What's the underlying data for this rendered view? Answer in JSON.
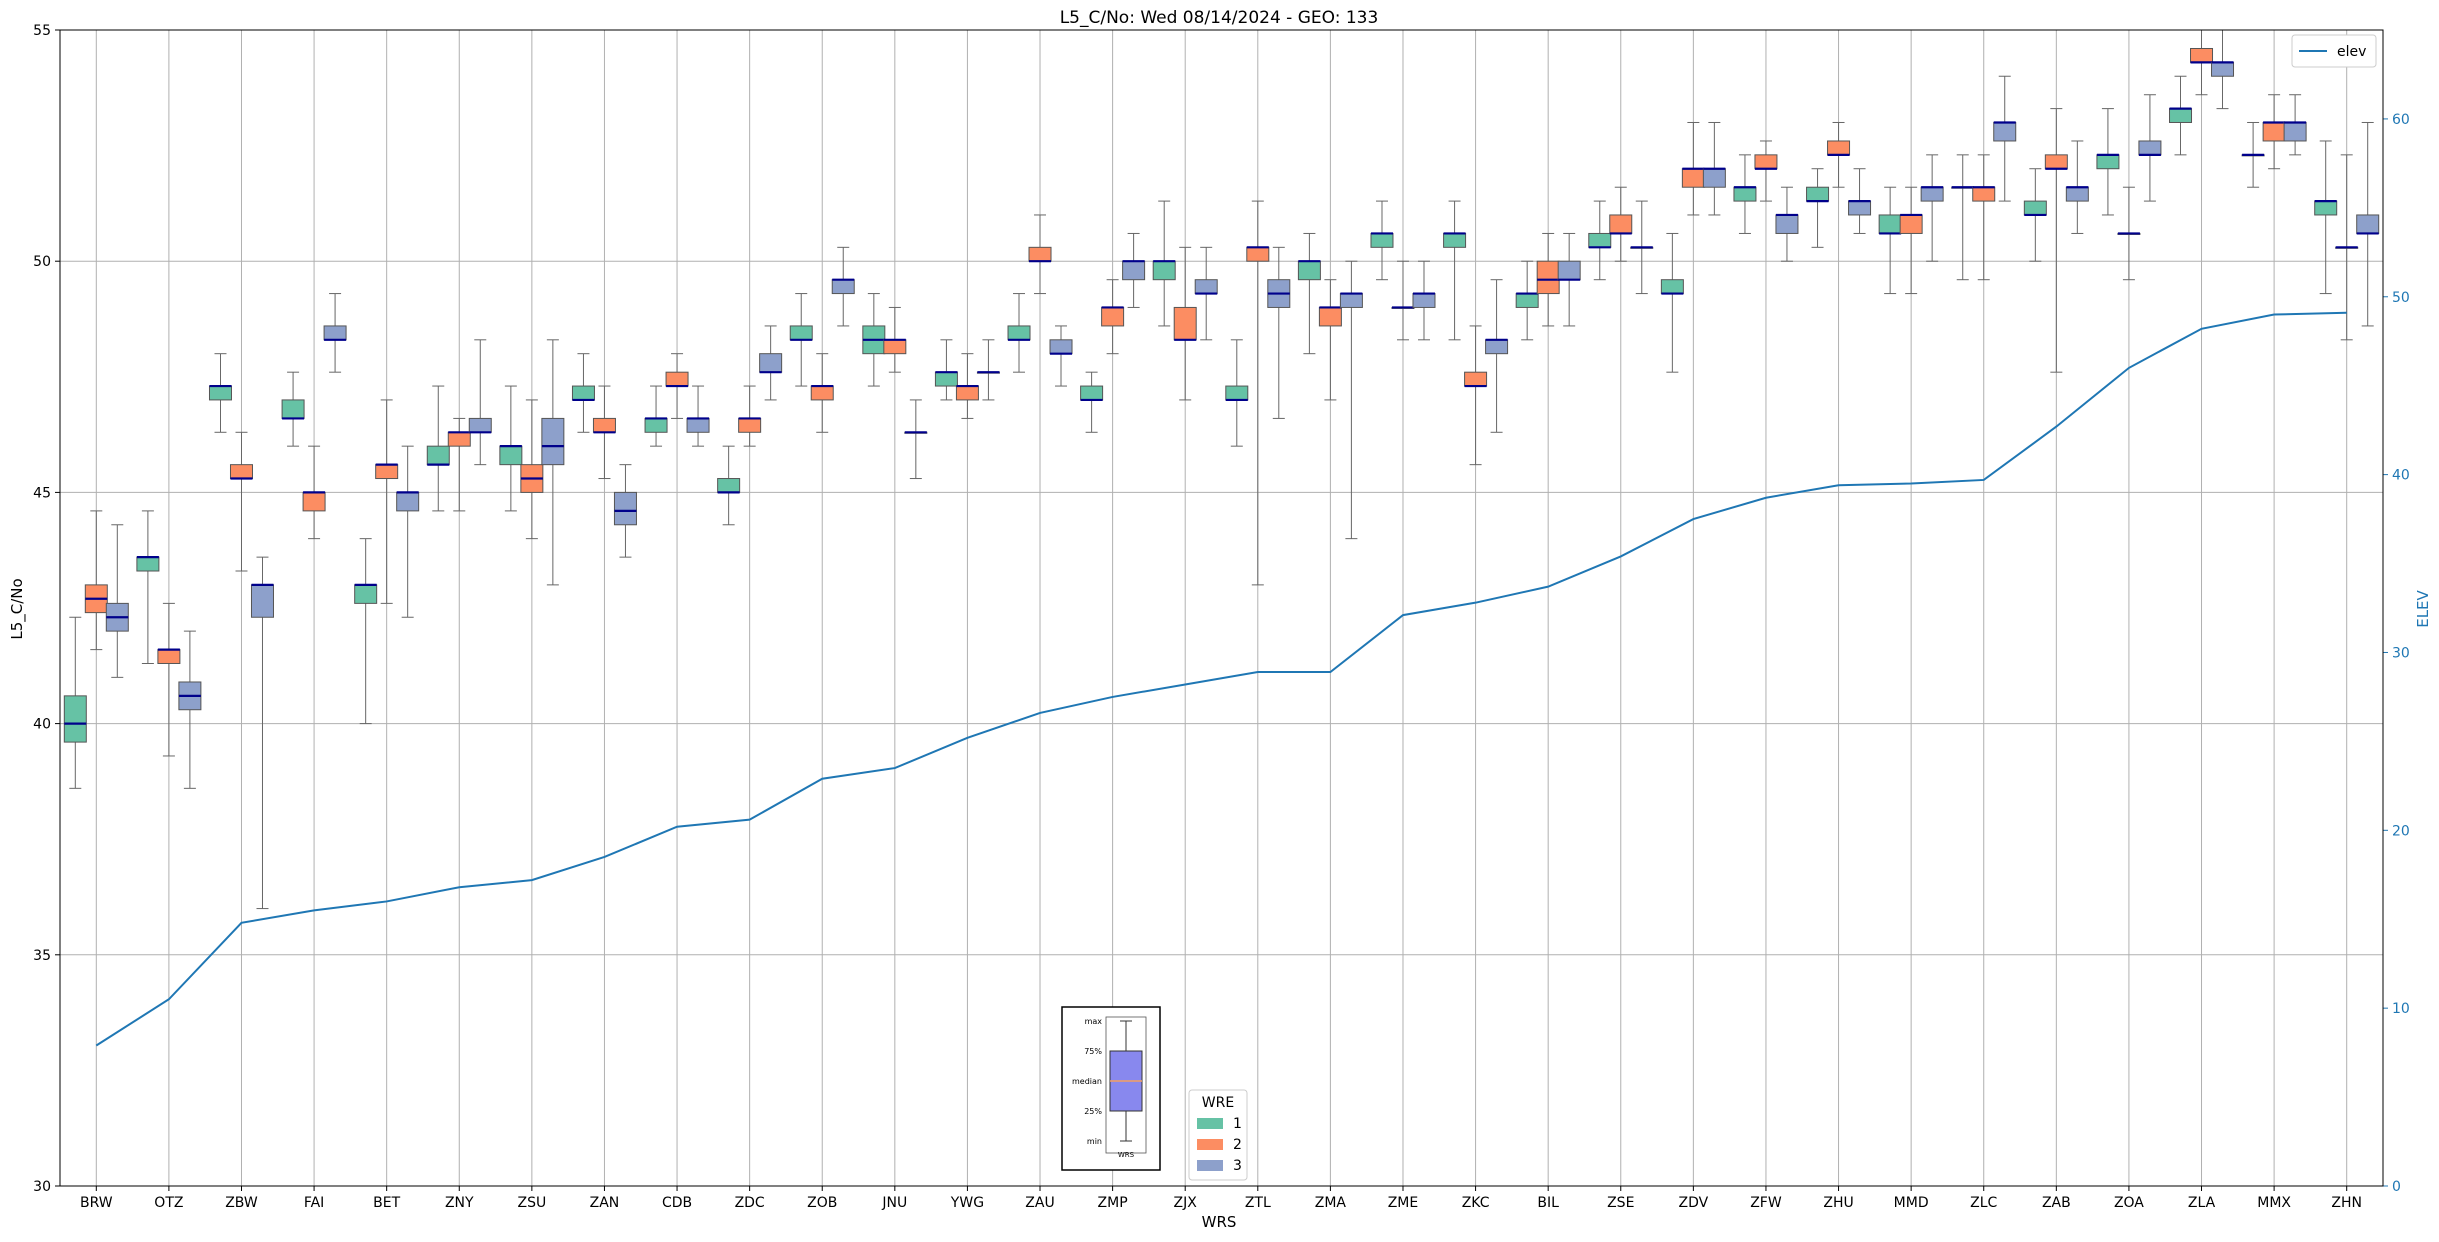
{
  "chart_data": {
    "type": "box",
    "title": "L5_C/No: Wed 08/14/2024 - GEO: 133",
    "xlabel": "WRS",
    "ylabel": "L5_C/No",
    "y2label": "ELEV",
    "ylim": [
      30,
      55
    ],
    "y2lim": [
      0,
      65
    ],
    "yticks": [
      30,
      35,
      40,
      45,
      50,
      55
    ],
    "y2ticks": [
      0,
      10,
      20,
      30,
      40,
      50,
      60
    ],
    "grid": true,
    "categories": [
      "BRW",
      "OTZ",
      "ZBW",
      "FAI",
      "BET",
      "ZNY",
      "ZSU",
      "ZAN",
      "CDB",
      "ZDC",
      "ZOB",
      "JNU",
      "YWG",
      "ZAU",
      "ZMP",
      "ZJX",
      "ZTL",
      "ZMA",
      "ZME",
      "ZKC",
      "BIL",
      "ZSE",
      "ZDV",
      "ZFW",
      "ZHU",
      "MMD",
      "ZLC",
      "ZAB",
      "ZOA",
      "ZLA",
      "MMX",
      "ZHN"
    ],
    "colors": {
      "1": "#66c2a5",
      "2": "#fc8d62",
      "3": "#8da0cb",
      "median": "#00008b",
      "elev": "#1f77b4",
      "whisker": "#666666",
      "grid": "#b0b0b0"
    },
    "legend_wre": {
      "title": "WRE",
      "entries": [
        "1",
        "2",
        "3"
      ],
      "placement": "bottom-center"
    },
    "legend_elev": {
      "label": "elev",
      "placement": "top-right"
    },
    "box_key": {
      "labels": [
        "max",
        "75%",
        "median",
        "25%",
        "min"
      ],
      "caption": "WRS",
      "placement": "bottom-center"
    },
    "boxes": [
      {
        "wrs": "BRW",
        "wre": 1,
        "min": 38.6,
        "q1": 39.6,
        "median": 40.0,
        "q3": 40.6,
        "max": 42.3
      },
      {
        "wrs": "BRW",
        "wre": 2,
        "min": 41.6,
        "q1": 42.4,
        "median": 42.7,
        "q3": 43.0,
        "max": 44.6
      },
      {
        "wrs": "BRW",
        "wre": 3,
        "min": 41.0,
        "q1": 42.0,
        "median": 42.3,
        "q3": 42.6,
        "max": 44.3
      },
      {
        "wrs": "OTZ",
        "wre": 1,
        "min": 41.3,
        "q1": 43.3,
        "median": 43.6,
        "q3": 43.6,
        "max": 44.6
      },
      {
        "wrs": "OTZ",
        "wre": 2,
        "min": 39.3,
        "q1": 41.3,
        "median": 41.6,
        "q3": 41.6,
        "max": 42.6
      },
      {
        "wrs": "OTZ",
        "wre": 3,
        "min": 38.6,
        "q1": 40.3,
        "median": 40.6,
        "q3": 40.9,
        "max": 42.0
      },
      {
        "wrs": "ZBW",
        "wre": 1,
        "min": 46.3,
        "q1": 47.0,
        "median": 47.3,
        "q3": 47.3,
        "max": 48.0
      },
      {
        "wrs": "ZBW",
        "wre": 2,
        "min": 43.3,
        "q1": 45.3,
        "median": 45.3,
        "q3": 45.6,
        "max": 46.3
      },
      {
        "wrs": "ZBW",
        "wre": 3,
        "min": 36.0,
        "q1": 42.3,
        "median": 43.0,
        "q3": 43.0,
        "max": 43.6
      },
      {
        "wrs": "FAI",
        "wre": 1,
        "min": 46.0,
        "q1": 46.6,
        "median": 46.6,
        "q3": 47.0,
        "max": 47.6
      },
      {
        "wrs": "FAI",
        "wre": 2,
        "min": 44.0,
        "q1": 44.6,
        "median": 45.0,
        "q3": 45.0,
        "max": 46.0
      },
      {
        "wrs": "FAI",
        "wre": 3,
        "min": 47.6,
        "q1": 48.3,
        "median": 48.3,
        "q3": 48.6,
        "max": 49.3
      },
      {
        "wrs": "BET",
        "wre": 1,
        "min": 40.0,
        "q1": 42.6,
        "median": 43.0,
        "q3": 43.0,
        "max": 44.0
      },
      {
        "wrs": "BET",
        "wre": 2,
        "min": 42.6,
        "q1": 45.3,
        "median": 45.6,
        "q3": 45.6,
        "max": 47.0
      },
      {
        "wrs": "BET",
        "wre": 3,
        "min": 42.3,
        "q1": 44.6,
        "median": 45.0,
        "q3": 45.0,
        "max": 46.0
      },
      {
        "wrs": "ZNY",
        "wre": 1,
        "min": 44.6,
        "q1": 45.6,
        "median": 45.6,
        "q3": 46.0,
        "max": 47.3
      },
      {
        "wrs": "ZNY",
        "wre": 2,
        "min": 44.6,
        "q1": 46.0,
        "median": 46.3,
        "q3": 46.3,
        "max": 46.6
      },
      {
        "wrs": "ZNY",
        "wre": 3,
        "min": 45.6,
        "q1": 46.3,
        "median": 46.3,
        "q3": 46.6,
        "max": 48.3
      },
      {
        "wrs": "ZSU",
        "wre": 1,
        "min": 44.6,
        "q1": 45.6,
        "median": 46.0,
        "q3": 46.0,
        "max": 47.3
      },
      {
        "wrs": "ZSU",
        "wre": 2,
        "min": 44.0,
        "q1": 45.0,
        "median": 45.3,
        "q3": 45.6,
        "max": 47.0
      },
      {
        "wrs": "ZSU",
        "wre": 3,
        "min": 43.0,
        "q1": 45.6,
        "median": 46.0,
        "q3": 46.6,
        "max": 48.3
      },
      {
        "wrs": "ZAN",
        "wre": 1,
        "min": 46.3,
        "q1": 47.0,
        "median": 47.0,
        "q3": 47.3,
        "max": 48.0
      },
      {
        "wrs": "ZAN",
        "wre": 2,
        "min": 45.3,
        "q1": 46.3,
        "median": 46.3,
        "q3": 46.6,
        "max": 47.3
      },
      {
        "wrs": "ZAN",
        "wre": 3,
        "min": 43.6,
        "q1": 44.3,
        "median": 44.6,
        "q3": 45.0,
        "max": 45.6
      },
      {
        "wrs": "CDB",
        "wre": 1,
        "min": 46.0,
        "q1": 46.3,
        "median": 46.6,
        "q3": 46.6,
        "max": 47.3
      },
      {
        "wrs": "CDB",
        "wre": 2,
        "min": 46.6,
        "q1": 47.3,
        "median": 47.3,
        "q3": 47.6,
        "max": 48.0
      },
      {
        "wrs": "CDB",
        "wre": 3,
        "min": 46.0,
        "q1": 46.3,
        "median": 46.6,
        "q3": 46.6,
        "max": 47.3
      },
      {
        "wrs": "ZDC",
        "wre": 1,
        "min": 44.3,
        "q1": 45.0,
        "median": 45.0,
        "q3": 45.3,
        "max": 46.0
      },
      {
        "wrs": "ZDC",
        "wre": 2,
        "min": 46.0,
        "q1": 46.3,
        "median": 46.6,
        "q3": 46.6,
        "max": 47.3
      },
      {
        "wrs": "ZDC",
        "wre": 3,
        "min": 47.0,
        "q1": 47.6,
        "median": 47.6,
        "q3": 48.0,
        "max": 48.6
      },
      {
        "wrs": "ZOB",
        "wre": 1,
        "min": 47.3,
        "q1": 48.3,
        "median": 48.3,
        "q3": 48.6,
        "max": 49.3
      },
      {
        "wrs": "ZOB",
        "wre": 2,
        "min": 46.3,
        "q1": 47.0,
        "median": 47.3,
        "q3": 47.3,
        "max": 48.0
      },
      {
        "wrs": "ZOB",
        "wre": 3,
        "min": 48.6,
        "q1": 49.3,
        "median": 49.6,
        "q3": 49.6,
        "max": 50.3
      },
      {
        "wrs": "JNU",
        "wre": 1,
        "min": 47.3,
        "q1": 48.0,
        "median": 48.3,
        "q3": 48.6,
        "max": 49.3
      },
      {
        "wrs": "JNU",
        "wre": 2,
        "min": 47.6,
        "q1": 48.0,
        "median": 48.3,
        "q3": 48.3,
        "max": 49.0
      },
      {
        "wrs": "JNU",
        "wre": 3,
        "min": 45.3,
        "q1": 46.3,
        "median": 46.3,
        "q3": 46.3,
        "max": 47.0
      },
      {
        "wrs": "YWG",
        "wre": 1,
        "min": 47.0,
        "q1": 47.3,
        "median": 47.6,
        "q3": 47.6,
        "max": 48.3
      },
      {
        "wrs": "YWG",
        "wre": 2,
        "min": 46.6,
        "q1": 47.0,
        "median": 47.3,
        "q3": 47.3,
        "max": 48.0
      },
      {
        "wrs": "YWG",
        "wre": 3,
        "min": 47.0,
        "q1": 47.6,
        "median": 47.6,
        "q3": 47.6,
        "max": 48.3
      },
      {
        "wrs": "ZAU",
        "wre": 1,
        "min": 47.6,
        "q1": 48.3,
        "median": 48.3,
        "q3": 48.6,
        "max": 49.3
      },
      {
        "wrs": "ZAU",
        "wre": 2,
        "min": 49.3,
        "q1": 50.0,
        "median": 50.0,
        "q3": 50.3,
        "max": 51.0
      },
      {
        "wrs": "ZAU",
        "wre": 3,
        "min": 47.3,
        "q1": 48.0,
        "median": 48.0,
        "q3": 48.3,
        "max": 48.6
      },
      {
        "wrs": "ZMP",
        "wre": 1,
        "min": 46.3,
        "q1": 47.0,
        "median": 47.0,
        "q3": 47.3,
        "max": 47.6
      },
      {
        "wrs": "ZMP",
        "wre": 2,
        "min": 48.0,
        "q1": 48.6,
        "median": 49.0,
        "q3": 49.0,
        "max": 49.6
      },
      {
        "wrs": "ZMP",
        "wre": 3,
        "min": 49.0,
        "q1": 49.6,
        "median": 50.0,
        "q3": 50.0,
        "max": 50.6
      },
      {
        "wrs": "ZJX",
        "wre": 1,
        "min": 48.6,
        "q1": 49.6,
        "median": 50.0,
        "q3": 50.0,
        "max": 51.3
      },
      {
        "wrs": "ZJX",
        "wre": 2,
        "min": 47.0,
        "q1": 48.3,
        "median": 48.3,
        "q3": 49.0,
        "max": 50.3
      },
      {
        "wrs": "ZJX",
        "wre": 3,
        "min": 48.3,
        "q1": 49.3,
        "median": 49.3,
        "q3": 49.6,
        "max": 50.3
      },
      {
        "wrs": "ZTL",
        "wre": 1,
        "min": 46.0,
        "q1": 47.0,
        "median": 47.0,
        "q3": 47.3,
        "max": 48.3
      },
      {
        "wrs": "ZTL",
        "wre": 2,
        "min": 43.0,
        "q1": 50.0,
        "median": 50.3,
        "q3": 50.3,
        "max": 51.3
      },
      {
        "wrs": "ZTL",
        "wre": 3,
        "min": 46.6,
        "q1": 49.0,
        "median": 49.3,
        "q3": 49.6,
        "max": 50.3
      },
      {
        "wrs": "ZMA",
        "wre": 1,
        "min": 48.0,
        "q1": 49.6,
        "median": 50.0,
        "q3": 50.0,
        "max": 50.6
      },
      {
        "wrs": "ZMA",
        "wre": 2,
        "min": 47.0,
        "q1": 48.6,
        "median": 49.0,
        "q3": 49.0,
        "max": 49.6
      },
      {
        "wrs": "ZMA",
        "wre": 3,
        "min": 44.0,
        "q1": 49.0,
        "median": 49.3,
        "q3": 49.3,
        "max": 50.0
      },
      {
        "wrs": "ZME",
        "wre": 1,
        "min": 49.6,
        "q1": 50.3,
        "median": 50.6,
        "q3": 50.6,
        "max": 51.3
      },
      {
        "wrs": "ZME",
        "wre": 2,
        "min": 48.3,
        "q1": 49.0,
        "median": 49.0,
        "q3": 49.0,
        "max": 50.0
      },
      {
        "wrs": "ZME",
        "wre": 3,
        "min": 48.3,
        "q1": 49.0,
        "median": 49.3,
        "q3": 49.3,
        "max": 50.0
      },
      {
        "wrs": "ZKC",
        "wre": 1,
        "min": 48.3,
        "q1": 50.3,
        "median": 50.6,
        "q3": 50.6,
        "max": 51.3
      },
      {
        "wrs": "ZKC",
        "wre": 2,
        "min": 45.6,
        "q1": 47.3,
        "median": 47.3,
        "q3": 47.6,
        "max": 48.6
      },
      {
        "wrs": "ZKC",
        "wre": 3,
        "min": 46.3,
        "q1": 48.0,
        "median": 48.3,
        "q3": 48.3,
        "max": 49.6
      },
      {
        "wrs": "BIL",
        "wre": 1,
        "min": 48.3,
        "q1": 49.0,
        "median": 49.3,
        "q3": 49.3,
        "max": 50.0
      },
      {
        "wrs": "BIL",
        "wre": 2,
        "min": 48.6,
        "q1": 49.3,
        "median": 49.6,
        "q3": 50.0,
        "max": 50.6
      },
      {
        "wrs": "BIL",
        "wre": 3,
        "min": 48.6,
        "q1": 49.6,
        "median": 49.6,
        "q3": 50.0,
        "max": 50.6
      },
      {
        "wrs": "ZSE",
        "wre": 1,
        "min": 49.6,
        "q1": 50.3,
        "median": 50.3,
        "q3": 50.6,
        "max": 51.3
      },
      {
        "wrs": "ZSE",
        "wre": 2,
        "min": 50.0,
        "q1": 50.6,
        "median": 50.6,
        "q3": 51.0,
        "max": 51.6
      },
      {
        "wrs": "ZSE",
        "wre": 3,
        "min": 49.3,
        "q1": 50.3,
        "median": 50.3,
        "q3": 50.3,
        "max": 51.3
      },
      {
        "wrs": "ZDV",
        "wre": 1,
        "min": 47.6,
        "q1": 49.3,
        "median": 49.3,
        "q3": 49.6,
        "max": 50.6
      },
      {
        "wrs": "ZDV",
        "wre": 2,
        "min": 51.0,
        "q1": 51.6,
        "median": 52.0,
        "q3": 52.0,
        "max": 53.0
      },
      {
        "wrs": "ZDV",
        "wre": 3,
        "min": 51.0,
        "q1": 51.6,
        "median": 52.0,
        "q3": 52.0,
        "max": 53.0
      },
      {
        "wrs": "ZFW",
        "wre": 1,
        "min": 50.6,
        "q1": 51.3,
        "median": 51.6,
        "q3": 51.6,
        "max": 52.3
      },
      {
        "wrs": "ZFW",
        "wre": 2,
        "min": 51.3,
        "q1": 52.0,
        "median": 52.0,
        "q3": 52.3,
        "max": 52.6
      },
      {
        "wrs": "ZFW",
        "wre": 3,
        "min": 50.0,
        "q1": 50.6,
        "median": 51.0,
        "q3": 51.0,
        "max": 51.6
      },
      {
        "wrs": "ZHU",
        "wre": 1,
        "min": 50.3,
        "q1": 51.3,
        "median": 51.3,
        "q3": 51.6,
        "max": 52.0
      },
      {
        "wrs": "ZHU",
        "wre": 2,
        "min": 51.6,
        "q1": 52.3,
        "median": 52.3,
        "q3": 52.6,
        "max": 53.0
      },
      {
        "wrs": "ZHU",
        "wre": 3,
        "min": 50.6,
        "q1": 51.0,
        "median": 51.3,
        "q3": 51.3,
        "max": 52.0
      },
      {
        "wrs": "MMD",
        "wre": 1,
        "min": 49.3,
        "q1": 50.6,
        "median": 50.6,
        "q3": 51.0,
        "max": 51.6
      },
      {
        "wrs": "MMD",
        "wre": 2,
        "min": 49.3,
        "q1": 50.6,
        "median": 51.0,
        "q3": 51.0,
        "max": 51.6
      },
      {
        "wrs": "MMD",
        "wre": 3,
        "min": 50.0,
        "q1": 51.3,
        "median": 51.6,
        "q3": 51.6,
        "max": 52.3
      },
      {
        "wrs": "ZLC",
        "wre": 1,
        "min": 49.6,
        "q1": 51.6,
        "median": 51.6,
        "q3": 51.6,
        "max": 52.3
      },
      {
        "wrs": "ZLC",
        "wre": 2,
        "min": 49.6,
        "q1": 51.3,
        "median": 51.6,
        "q3": 51.6,
        "max": 52.3
      },
      {
        "wrs": "ZLC",
        "wre": 3,
        "min": 51.3,
        "q1": 52.6,
        "median": 53.0,
        "q3": 53.0,
        "max": 54.0
      },
      {
        "wrs": "ZAB",
        "wre": 1,
        "min": 50.0,
        "q1": 51.0,
        "median": 51.0,
        "q3": 51.3,
        "max": 52.0
      },
      {
        "wrs": "ZAB",
        "wre": 2,
        "min": 47.6,
        "q1": 52.0,
        "median": 52.0,
        "q3": 52.3,
        "max": 53.3
      },
      {
        "wrs": "ZAB",
        "wre": 3,
        "min": 50.6,
        "q1": 51.3,
        "median": 51.6,
        "q3": 51.6,
        "max": 52.6
      },
      {
        "wrs": "ZOA",
        "wre": 1,
        "min": 51.0,
        "q1": 52.0,
        "median": 52.3,
        "q3": 52.3,
        "max": 53.3
      },
      {
        "wrs": "ZOA",
        "wre": 2,
        "min": 49.6,
        "q1": 50.6,
        "median": 50.6,
        "q3": 50.6,
        "max": 51.6
      },
      {
        "wrs": "ZOA",
        "wre": 3,
        "min": 51.3,
        "q1": 52.3,
        "median": 52.3,
        "q3": 52.6,
        "max": 53.6
      },
      {
        "wrs": "ZLA",
        "wre": 1,
        "min": 52.3,
        "q1": 53.0,
        "median": 53.3,
        "q3": 53.3,
        "max": 54.0
      },
      {
        "wrs": "ZLA",
        "wre": 2,
        "min": 53.6,
        "q1": 54.3,
        "median": 54.3,
        "q3": 54.6,
        "max": 55.0
      },
      {
        "wrs": "ZLA",
        "wre": 3,
        "min": 53.3,
        "q1": 54.0,
        "median": 54.3,
        "q3": 54.3,
        "max": 55.0
      },
      {
        "wrs": "MMX",
        "wre": 1,
        "min": 51.6,
        "q1": 52.3,
        "median": 52.3,
        "q3": 52.3,
        "max": 53.0
      },
      {
        "wrs": "MMX",
        "wre": 2,
        "min": 52.0,
        "q1": 52.6,
        "median": 53.0,
        "q3": 53.0,
        "max": 53.6
      },
      {
        "wrs": "MMX",
        "wre": 3,
        "min": 52.3,
        "q1": 52.6,
        "median": 53.0,
        "q3": 53.0,
        "max": 53.6
      },
      {
        "wrs": "ZHN",
        "wre": 1,
        "min": 49.3,
        "q1": 51.0,
        "median": 51.3,
        "q3": 51.3,
        "max": 52.6
      },
      {
        "wrs": "ZHN",
        "wre": 2,
        "min": 48.3,
        "q1": 50.3,
        "median": 50.3,
        "q3": 50.3,
        "max": 52.3
      },
      {
        "wrs": "ZHN",
        "wre": 3,
        "min": 48.6,
        "q1": 50.6,
        "median": 50.6,
        "q3": 51.0,
        "max": 53.0
      }
    ],
    "elev": {
      "name": "elev",
      "values": [
        7.9,
        10.5,
        14.8,
        15.5,
        16.0,
        16.8,
        17.2,
        18.5,
        20.2,
        20.6,
        22.9,
        23.5,
        25.2,
        26.6,
        27.5,
        28.2,
        28.9,
        28.9,
        32.1,
        32.8,
        33.7,
        35.4,
        37.5,
        38.7,
        39.4,
        39.5,
        39.7,
        42.7,
        46.0,
        48.2,
        49.0,
        49.1
      ]
    }
  }
}
